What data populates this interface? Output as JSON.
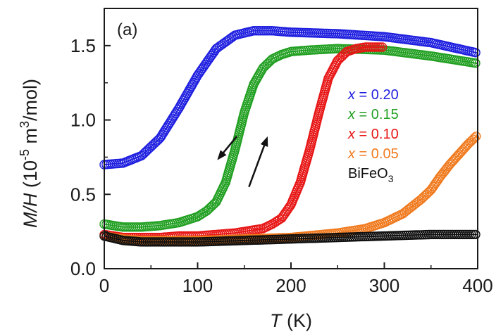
{
  "chart_data": {
    "type": "scatter",
    "panel_label": "(a)",
    "xlabel_var": "T",
    "xlabel_unit": " (K)",
    "ylabel_var": "M/H",
    "ylabel_unit_pre": " (10",
    "ylabel_exp1": "-5",
    "ylabel_mid": " m",
    "ylabel_exp2": "3",
    "ylabel_unit_post": "/mol)",
    "xlim": [
      0,
      400
    ],
    "ylim": [
      0,
      1.75
    ],
    "x_ticks": [
      0,
      100,
      200,
      300,
      400
    ],
    "y_ticks": [
      0.0,
      0.5,
      1.0,
      1.5
    ],
    "x_tick_labels": [
      "0",
      "100",
      "200",
      "300",
      "400"
    ],
    "y_tick_labels": [
      "0.0",
      "0.5",
      "1.0",
      "1.5"
    ],
    "grid": false,
    "legend_position": "right",
    "annotations": [
      {
        "type": "arrow",
        "direction": "down",
        "meaning": "cooling",
        "from": [
          142,
          0.89
        ],
        "to": [
          121,
          0.73
        ]
      },
      {
        "type": "arrow",
        "direction": "up",
        "meaning": "warming",
        "from": [
          155,
          0.55
        ],
        "to": [
          175,
          0.89
        ]
      }
    ],
    "series": [
      {
        "name_var": "x",
        "name_rest": " = 0.20",
        "color": "#1f1fe0",
        "x": [
          0,
          20,
          40,
          60,
          80,
          100,
          120,
          140,
          160,
          180,
          200,
          250,
          300,
          350,
          400
        ],
        "y": [
          0.7,
          0.71,
          0.76,
          0.88,
          1.08,
          1.3,
          1.48,
          1.57,
          1.6,
          1.6,
          1.59,
          1.58,
          1.56,
          1.52,
          1.45
        ]
      },
      {
        "name_var": "x",
        "name_rest": " = 0.15",
        "color": "#22a022",
        "x": [
          0,
          20,
          40,
          60,
          80,
          100,
          110,
          120,
          130,
          140,
          150,
          160,
          170,
          180,
          190,
          200,
          220,
          250,
          300,
          350,
          400
        ],
        "y": [
          0.3,
          0.28,
          0.28,
          0.29,
          0.31,
          0.35,
          0.39,
          0.45,
          0.58,
          0.8,
          1.05,
          1.24,
          1.35,
          1.41,
          1.44,
          1.46,
          1.47,
          1.48,
          1.47,
          1.43,
          1.38
        ]
      },
      {
        "name_var": "x",
        "name_rest": " = 0.10",
        "color": "#e81616",
        "x": [
          0,
          20,
          40,
          60,
          80,
          100,
          120,
          140,
          160,
          170,
          180,
          190,
          200,
          210,
          220,
          230,
          240,
          250,
          260,
          270,
          280,
          300
        ],
        "y": [
          0.23,
          0.21,
          0.21,
          0.21,
          0.22,
          0.22,
          0.23,
          0.24,
          0.26,
          0.27,
          0.3,
          0.34,
          0.43,
          0.58,
          0.8,
          1.05,
          1.28,
          1.4,
          1.46,
          1.48,
          1.49,
          1.49
        ]
      },
      {
        "name_var": "x",
        "name_rest": " = 0.05",
        "color": "#f07a1e",
        "x": [
          0,
          20,
          40,
          60,
          80,
          100,
          150,
          200,
          250,
          280,
          300,
          320,
          340,
          350,
          360,
          370,
          380,
          390,
          400
        ],
        "y": [
          0.22,
          0.2,
          0.19,
          0.19,
          0.19,
          0.19,
          0.2,
          0.21,
          0.24,
          0.27,
          0.31,
          0.37,
          0.47,
          0.53,
          0.62,
          0.7,
          0.77,
          0.84,
          0.9
        ]
      },
      {
        "name_var": "",
        "name_rest": "BiFeO",
        "name_sub": "3",
        "color": "#111111",
        "x": [
          0,
          20,
          40,
          60,
          100,
          150,
          200,
          250,
          300,
          350,
          400
        ],
        "y": [
          0.22,
          0.19,
          0.18,
          0.18,
          0.18,
          0.19,
          0.2,
          0.21,
          0.22,
          0.23,
          0.23
        ]
      }
    ]
  }
}
